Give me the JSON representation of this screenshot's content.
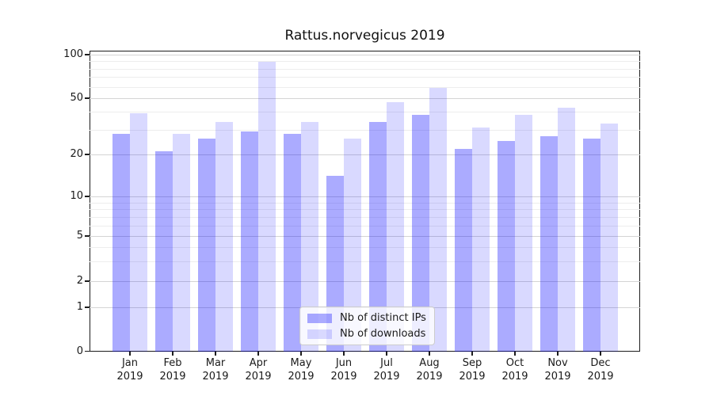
{
  "chart_data": {
    "type": "bar",
    "title": "Rattus.norvegicus 2019",
    "categories": [
      "Jan",
      "Feb",
      "Mar",
      "Apr",
      "May",
      "Jun",
      "Jul",
      "Aug",
      "Sep",
      "Oct",
      "Nov",
      "Dec"
    ],
    "category_year": "2019",
    "series": [
      {
        "name": "Nb of distinct IPs",
        "color": "#0000ff",
        "alpha": 0.33,
        "values": [
          28,
          21,
          26,
          29,
          28,
          14,
          34,
          38,
          22,
          25,
          27,
          26
        ]
      },
      {
        "name": "Nb of downloads",
        "color": "#0000ff",
        "alpha": 0.15,
        "values": [
          39,
          28,
          34,
          89,
          34,
          26,
          47,
          59,
          31,
          38,
          43,
          33
        ]
      }
    ],
    "xlabel": "",
    "ylabel": "",
    "yscale": "symlog",
    "yticks": [
      0,
      1,
      2,
      5,
      10,
      20,
      50,
      100
    ],
    "yticks_minor": [
      3,
      4,
      6,
      7,
      8,
      9,
      30,
      40,
      60,
      70,
      80,
      90
    ],
    "ylim": [
      0,
      107
    ],
    "grid": true,
    "legend_position": "lower center"
  },
  "colors": {
    "bar_distinct_ips_rendered": "#aaaaf8",
    "bar_downloads_rendered": "#d8d8f8",
    "grid_major": "#d4d4d4",
    "grid_minor": "#ededed",
    "axis": "#1c1c1c",
    "legend_border": "#cccccc"
  }
}
